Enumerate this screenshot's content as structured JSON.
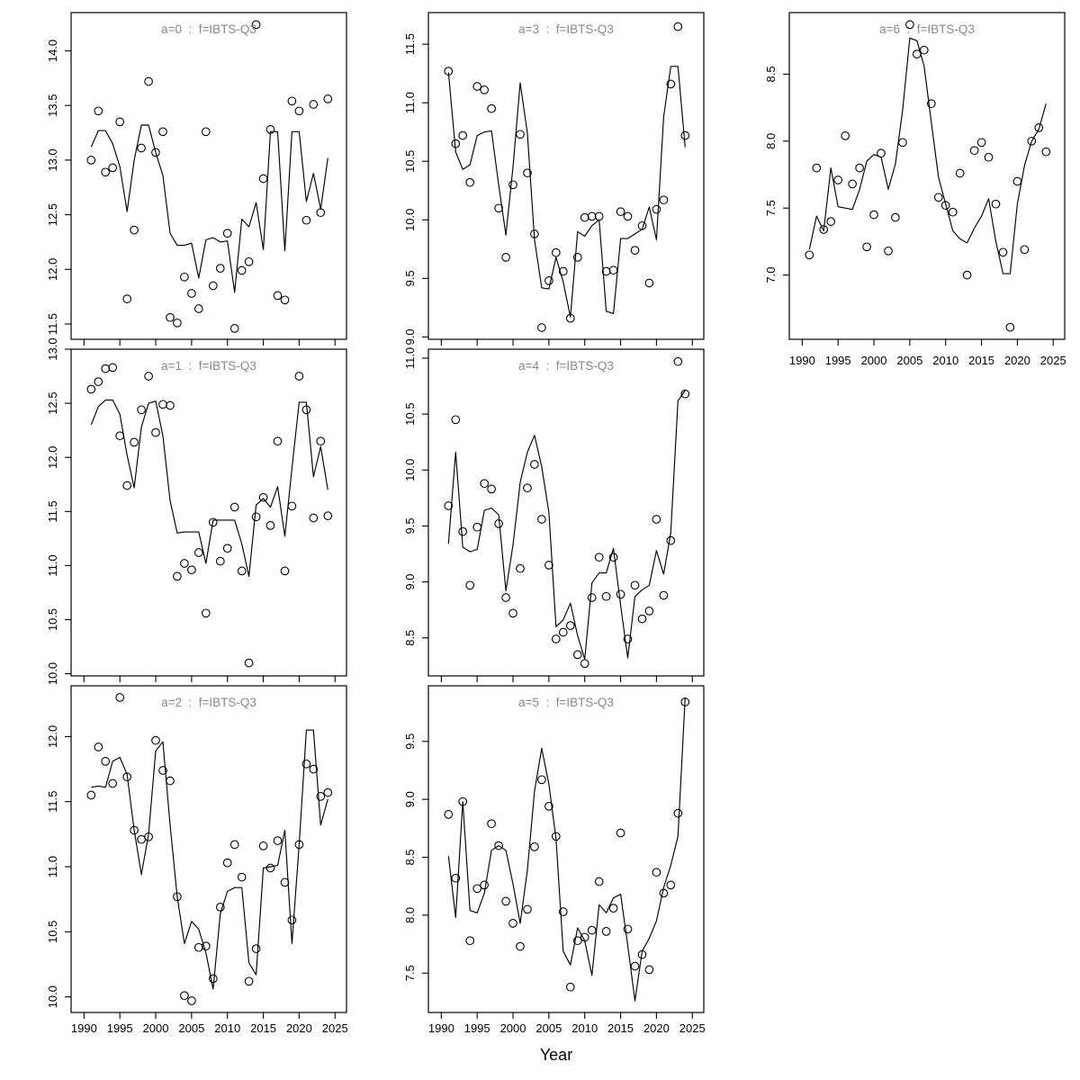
{
  "figure": {
    "xlabel": "Year"
  },
  "chart_data": {
    "type": "scatter",
    "description": "3x3 grid of survey-index panels: observed points (open circles) and fitted line per age",
    "xlabel": "Year",
    "xlim": [
      1988.2,
      2026.6
    ],
    "xticks": [
      1990,
      1995,
      2000,
      2005,
      2010,
      2015,
      2020,
      2025
    ],
    "years": [
      1991,
      1992,
      1993,
      1994,
      1995,
      1996,
      1997,
      1998,
      1999,
      2000,
      2001,
      2002,
      2003,
      2004,
      2005,
      2006,
      2007,
      2008,
      2009,
      2010,
      2011,
      2012,
      2013,
      2014,
      2015,
      2016,
      2017,
      2018,
      2019,
      2020,
      2021,
      2022,
      2023,
      2024
    ],
    "grid": {
      "rows": 3,
      "cols": 3
    },
    "legend": [
      "observed",
      "fitted"
    ],
    "panels": [
      {
        "id": "a0",
        "title": "a=0  :  f=IBTS-Q3",
        "grid_row": 0,
        "grid_col": 0,
        "ylim": [
          11.36,
          14.35
        ],
        "yticks": [
          11.5,
          12.0,
          12.5,
          13.0,
          13.5,
          14.0
        ],
        "x_tick_labels": false,
        "series": {
          "observed": [
            13.0,
            13.45,
            12.89,
            12.93,
            13.35,
            11.73,
            12.36,
            13.11,
            13.72,
            13.07,
            13.26,
            11.56,
            11.51,
            11.93,
            11.78,
            11.64,
            13.26,
            11.85,
            12.01,
            12.33,
            11.46,
            11.99,
            12.07,
            14.24,
            12.83,
            13.28,
            11.76,
            11.72,
            13.54,
            13.45,
            12.45,
            13.51,
            12.52,
            13.56
          ],
          "fitted": [
            13.12,
            13.27,
            13.27,
            13.15,
            12.94,
            12.53,
            13.0,
            13.32,
            13.32,
            13.07,
            12.86,
            12.33,
            12.22,
            12.22,
            12.24,
            11.92,
            12.27,
            12.29,
            12.25,
            12.26,
            11.79,
            12.46,
            12.39,
            12.61,
            12.18,
            13.26,
            13.26,
            12.17,
            13.26,
            13.26,
            12.62,
            12.88,
            12.55,
            13.02
          ]
        }
      },
      {
        "id": "a1",
        "title": "a=1  :  f=IBTS-Q3",
        "grid_row": 1,
        "grid_col": 0,
        "ylim": [
          9.98,
          13.0
        ],
        "yticks": [
          10.0,
          10.5,
          11.0,
          11.5,
          12.0,
          12.5,
          13.0
        ],
        "x_tick_labels": false,
        "series": {
          "observed": [
            12.63,
            12.7,
            12.82,
            12.83,
            12.2,
            11.74,
            12.14,
            12.44,
            12.75,
            12.23,
            12.49,
            12.48,
            10.9,
            11.02,
            10.96,
            11.12,
            10.56,
            11.4,
            11.04,
            11.16,
            11.54,
            10.95,
            10.1,
            11.45,
            11.63,
            11.37,
            12.15,
            10.95,
            11.55,
            12.75,
            12.44,
            11.44,
            12.15,
            11.46
          ],
          "fitted": [
            12.3,
            12.47,
            12.53,
            12.53,
            12.4,
            12.02,
            11.72,
            12.28,
            12.5,
            12.52,
            12.2,
            11.6,
            11.3,
            11.31,
            11.31,
            11.31,
            11.02,
            11.42,
            11.42,
            11.42,
            11.42,
            11.2,
            10.9,
            11.56,
            11.62,
            11.54,
            11.73,
            11.27,
            11.9,
            12.51,
            12.51,
            11.82,
            12.1,
            11.7
          ]
        }
      },
      {
        "id": "a2",
        "title": "a=2  :  f=IBTS-Q3",
        "grid_row": 2,
        "grid_col": 0,
        "ylim": [
          9.88,
          12.39
        ],
        "yticks": [
          10.0,
          10.5,
          11.0,
          11.5,
          12.0
        ],
        "x_tick_labels": true,
        "series": {
          "observed": [
            11.55,
            11.92,
            11.81,
            11.64,
            12.3,
            11.69,
            11.28,
            11.21,
            11.23,
            11.97,
            11.74,
            11.66,
            10.77,
            10.01,
            9.97,
            10.38,
            10.39,
            10.14,
            10.69,
            11.03,
            11.17,
            10.92,
            10.12,
            10.37,
            11.16,
            10.99,
            11.2,
            10.88,
            10.59,
            11.17,
            11.79,
            11.75,
            11.54,
            11.57
          ],
          "fitted": [
            11.61,
            11.62,
            11.61,
            11.81,
            11.84,
            11.71,
            11.28,
            10.94,
            11.25,
            11.89,
            11.96,
            11.32,
            10.77,
            10.41,
            10.58,
            10.52,
            10.34,
            10.06,
            10.64,
            10.81,
            10.84,
            10.84,
            10.26,
            10.17,
            10.99,
            11.0,
            11.01,
            11.28,
            10.41,
            11.17,
            12.05,
            12.05,
            11.32,
            11.52
          ]
        }
      },
      {
        "id": "a3",
        "title": "a=3  :  f=IBTS-Q3",
        "grid_row": 0,
        "grid_col": 1,
        "ylim": [
          8.98,
          11.77
        ],
        "yticks": [
          9.0,
          9.5,
          10.0,
          10.5,
          11.0,
          11.5
        ],
        "x_tick_labels": false,
        "series": {
          "observed": [
            11.27,
            10.65,
            10.72,
            10.32,
            11.14,
            11.11,
            10.95,
            10.1,
            9.68,
            10.3,
            10.73,
            10.4,
            9.88,
            9.08,
            9.48,
            9.72,
            9.56,
            9.16,
            9.68,
            10.02,
            10.03,
            10.03,
            9.56,
            9.57,
            10.07,
            10.03,
            9.74,
            9.95,
            9.46,
            10.09,
            10.17,
            11.16,
            11.65,
            10.72
          ],
          "fitted": [
            11.26,
            10.58,
            10.43,
            10.47,
            10.72,
            10.75,
            10.76,
            10.3,
            9.87,
            10.45,
            11.17,
            10.74,
            9.83,
            9.42,
            9.41,
            9.68,
            9.47,
            9.17,
            9.9,
            9.86,
            9.95,
            10.0,
            9.22,
            9.2,
            9.84,
            9.84,
            9.88,
            9.92,
            10.11,
            9.83,
            10.88,
            11.31,
            11.31,
            10.62
          ]
        }
      },
      {
        "id": "a4",
        "title": "a=4  :  f=IBTS-Q3",
        "grid_row": 1,
        "grid_col": 1,
        "ylim": [
          8.16,
          11.08
        ],
        "yticks": [
          8.5,
          9.0,
          9.5,
          10.0,
          10.5,
          11.0
        ],
        "x_tick_labels": false,
        "series": {
          "observed": [
            9.68,
            10.45,
            9.45,
            8.97,
            9.49,
            9.88,
            9.83,
            9.52,
            8.86,
            8.72,
            9.12,
            9.84,
            10.05,
            9.56,
            9.15,
            8.49,
            8.55,
            8.61,
            8.35,
            8.27,
            8.86,
            9.22,
            8.87,
            9.22,
            8.89,
            8.49,
            8.97,
            8.67,
            8.74,
            9.56,
            8.88,
            9.37,
            10.97,
            10.68
          ],
          "fitted": [
            9.34,
            10.16,
            9.31,
            9.27,
            9.29,
            9.64,
            9.66,
            9.6,
            8.92,
            9.33,
            9.89,
            10.16,
            10.31,
            10.03,
            9.62,
            8.6,
            8.66,
            8.81,
            8.52,
            8.31,
            8.99,
            9.08,
            9.08,
            9.3,
            8.79,
            8.32,
            8.87,
            8.93,
            8.97,
            9.28,
            9.07,
            9.44,
            10.62,
            10.71
          ]
        }
      },
      {
        "id": "a5",
        "title": "a=5  :  f=IBTS-Q3",
        "grid_row": 2,
        "grid_col": 1,
        "ylim": [
          7.16,
          9.98
        ],
        "yticks": [
          7.5,
          8.0,
          8.5,
          9.0,
          9.5
        ],
        "x_tick_labels": true,
        "series": {
          "observed": [
            8.87,
            8.32,
            8.98,
            7.78,
            8.23,
            8.26,
            8.79,
            8.6,
            8.12,
            7.93,
            7.73,
            8.05,
            8.59,
            9.17,
            8.94,
            8.68,
            8.03,
            7.38,
            7.78,
            7.81,
            7.87,
            8.29,
            7.86,
            8.06,
            8.71,
            7.88,
            7.56,
            7.66,
            7.53,
            8.37,
            8.19,
            8.26,
            8.88,
            9.84
          ],
          "fitted": [
            8.51,
            7.98,
            8.98,
            8.04,
            8.02,
            8.19,
            8.56,
            8.6,
            8.56,
            8.27,
            7.93,
            8.39,
            9.07,
            9.44,
            9.13,
            8.66,
            7.69,
            7.57,
            7.89,
            7.78,
            7.48,
            8.09,
            8.02,
            8.15,
            8.18,
            7.74,
            7.26,
            7.69,
            7.8,
            7.95,
            8.24,
            8.43,
            8.68,
            9.88
          ]
        }
      },
      {
        "id": "a6",
        "title": "a=6  :  f=IBTS-Q3",
        "grid_row": 0,
        "grid_col": 2,
        "ylim": [
          6.52,
          8.96
        ],
        "yticks": [
          7.0,
          7.5,
          8.0,
          8.5
        ],
        "x_tick_labels": true,
        "series": {
          "observed": [
            7.15,
            7.8,
            7.34,
            7.4,
            7.71,
            8.04,
            7.68,
            7.8,
            7.21,
            7.45,
            7.91,
            7.18,
            7.43,
            7.99,
            8.87,
            8.65,
            8.68,
            8.28,
            7.58,
            7.52,
            7.47,
            7.76,
            7.0,
            7.93,
            7.99,
            7.88,
            7.53,
            7.17,
            6.61,
            7.7,
            7.19,
            8.0,
            8.1,
            7.92
          ],
          "fitted": [
            7.19,
            7.44,
            7.33,
            7.8,
            7.51,
            7.5,
            7.49,
            7.64,
            7.85,
            7.9,
            7.88,
            7.64,
            7.83,
            8.23,
            8.77,
            8.75,
            8.56,
            8.14,
            7.73,
            7.53,
            7.33,
            7.27,
            7.24,
            7.35,
            7.44,
            7.57,
            7.25,
            7.01,
            7.01,
            7.53,
            7.82,
            8.0,
            8.09,
            8.28
          ]
        }
      }
    ]
  }
}
